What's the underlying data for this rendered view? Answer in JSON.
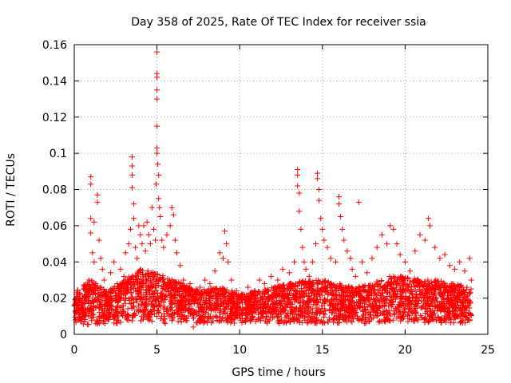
{
  "chart_data": {
    "type": "scatter",
    "title": "Day 358 of 2025, Rate Of TEC Index for receiver ssia",
    "xlabel": "GPS time / hours",
    "ylabel": "ROTI / TECUs",
    "xlim": [
      0,
      25
    ],
    "ylim": [
      0,
      0.16
    ],
    "x_ticks": [
      0,
      5,
      10,
      15,
      20,
      25
    ],
    "x_tick_labels": [
      "0",
      "5",
      "10",
      "15",
      "20",
      "25"
    ],
    "y_ticks": [
      0,
      0.02,
      0.04,
      0.06,
      0.08,
      0.1,
      0.12,
      0.14,
      0.16
    ],
    "y_tick_labels": [
      "0",
      "0.02",
      "0.04",
      "0.06",
      "0.08",
      "0.1",
      "0.12",
      "0.14",
      "0.16"
    ],
    "grid": true,
    "marker": "+",
    "marker_color": "#ff0000",
    "series": [
      {
        "name": "ROTI",
        "points": [
          [
            0.1,
            0.018
          ],
          [
            0.3,
            0.022
          ],
          [
            0.5,
            0.012
          ],
          [
            0.7,
            0.026
          ],
          [
            0.9,
            0.03
          ],
          [
            1.0,
            0.087
          ],
          [
            1.0,
            0.083
          ],
          [
            1.0,
            0.064
          ],
          [
            1.0,
            0.056
          ],
          [
            1.1,
            0.045
          ],
          [
            1.2,
            0.062
          ],
          [
            1.2,
            0.04
          ],
          [
            1.3,
            0.028
          ],
          [
            1.4,
            0.077
          ],
          [
            1.4,
            0.073
          ],
          [
            1.5,
            0.052
          ],
          [
            1.6,
            0.042
          ],
          [
            1.7,
            0.036
          ],
          [
            1.8,
            0.03
          ],
          [
            2.0,
            0.02
          ],
          [
            2.2,
            0.034
          ],
          [
            2.4,
            0.04
          ],
          [
            2.6,
            0.028
          ],
          [
            2.8,
            0.036
          ],
          [
            3.0,
            0.032
          ],
          [
            3.1,
            0.045
          ],
          [
            3.3,
            0.05
          ],
          [
            3.4,
            0.058
          ],
          [
            3.5,
            0.098
          ],
          [
            3.5,
            0.093
          ],
          [
            3.5,
            0.088
          ],
          [
            3.5,
            0.081
          ],
          [
            3.6,
            0.072
          ],
          [
            3.6,
            0.064
          ],
          [
            3.7,
            0.048
          ],
          [
            3.8,
            0.042
          ],
          [
            3.9,
            0.06
          ],
          [
            4.0,
            0.055
          ],
          [
            4.1,
            0.05
          ],
          [
            4.2,
            0.06
          ],
          [
            4.3,
            0.046
          ],
          [
            4.4,
            0.062
          ],
          [
            4.5,
            0.055
          ],
          [
            4.6,
            0.05
          ],
          [
            4.7,
            0.07
          ],
          [
            4.8,
            0.058
          ],
          [
            4.9,
            0.052
          ],
          [
            4.95,
            0.083
          ],
          [
            5.0,
            0.156
          ],
          [
            5.0,
            0.144
          ],
          [
            5.0,
            0.142
          ],
          [
            5.0,
            0.135
          ],
          [
            5.0,
            0.13
          ],
          [
            5.0,
            0.115
          ],
          [
            5.0,
            0.103
          ],
          [
            5.0,
            0.1
          ],
          [
            5.05,
            0.094
          ],
          [
            5.1,
            0.088
          ],
          [
            5.1,
            0.075
          ],
          [
            5.15,
            0.07
          ],
          [
            5.2,
            0.065
          ],
          [
            5.3,
            0.052
          ],
          [
            5.4,
            0.048
          ],
          [
            5.6,
            0.055
          ],
          [
            5.8,
            0.06
          ],
          [
            5.9,
            0.07
          ],
          [
            6.0,
            0.066
          ],
          [
            6.1,
            0.052
          ],
          [
            6.2,
            0.045
          ],
          [
            6.4,
            0.038
          ],
          [
            6.6,
            0.03
          ],
          [
            6.8,
            0.025
          ],
          [
            7.0,
            0.028
          ],
          [
            7.3,
            0.022
          ],
          [
            7.6,
            0.026
          ],
          [
            7.9,
            0.03
          ],
          [
            8.2,
            0.028
          ],
          [
            8.5,
            0.035
          ],
          [
            8.8,
            0.045
          ],
          [
            9.0,
            0.042
          ],
          [
            9.1,
            0.057
          ],
          [
            9.2,
            0.05
          ],
          [
            9.3,
            0.04
          ],
          [
            9.5,
            0.03
          ],
          [
            9.8,
            0.024
          ],
          [
            10.1,
            0.022
          ],
          [
            10.5,
            0.026
          ],
          [
            10.9,
            0.024
          ],
          [
            11.2,
            0.03
          ],
          [
            11.5,
            0.028
          ],
          [
            11.9,
            0.032
          ],
          [
            12.3,
            0.03
          ],
          [
            12.6,
            0.036
          ],
          [
            13.0,
            0.034
          ],
          [
            13.3,
            0.04
          ],
          [
            13.5,
            0.091
          ],
          [
            13.5,
            0.088
          ],
          [
            13.5,
            0.082
          ],
          [
            13.6,
            0.078
          ],
          [
            13.6,
            0.068
          ],
          [
            13.7,
            0.058
          ],
          [
            13.8,
            0.048
          ],
          [
            13.9,
            0.04
          ],
          [
            14.0,
            0.036
          ],
          [
            14.2,
            0.032
          ],
          [
            14.4,
            0.04
          ],
          [
            14.6,
            0.05
          ],
          [
            14.7,
            0.089
          ],
          [
            14.7,
            0.086
          ],
          [
            14.8,
            0.08
          ],
          [
            14.8,
            0.074
          ],
          [
            14.9,
            0.064
          ],
          [
            15.0,
            0.058
          ],
          [
            15.1,
            0.052
          ],
          [
            15.3,
            0.048
          ],
          [
            15.5,
            0.042
          ],
          [
            15.8,
            0.04
          ],
          [
            16.0,
            0.076
          ],
          [
            16.0,
            0.072
          ],
          [
            16.1,
            0.065
          ],
          [
            16.2,
            0.058
          ],
          [
            16.3,
            0.052
          ],
          [
            16.5,
            0.046
          ],
          [
            16.7,
            0.042
          ],
          [
            16.8,
            0.036
          ],
          [
            17.0,
            0.032
          ],
          [
            17.2,
            0.073
          ],
          [
            17.4,
            0.04
          ],
          [
            17.7,
            0.034
          ],
          [
            18.0,
            0.042
          ],
          [
            18.3,
            0.048
          ],
          [
            18.6,
            0.055
          ],
          [
            18.9,
            0.05
          ],
          [
            19.1,
            0.06
          ],
          [
            19.3,
            0.058
          ],
          [
            19.5,
            0.05
          ],
          [
            19.7,
            0.044
          ],
          [
            20.0,
            0.04
          ],
          [
            20.3,
            0.035
          ],
          [
            20.6,
            0.046
          ],
          [
            20.9,
            0.055
          ],
          [
            21.2,
            0.052
          ],
          [
            21.4,
            0.064
          ],
          [
            21.5,
            0.06
          ],
          [
            21.8,
            0.048
          ],
          [
            22.1,
            0.042
          ],
          [
            22.4,
            0.044
          ],
          [
            22.7,
            0.038
          ],
          [
            23.0,
            0.036
          ],
          [
            23.3,
            0.04
          ],
          [
            23.6,
            0.035
          ],
          [
            23.9,
            0.042
          ],
          [
            24.0,
            0.03
          ],
          [
            0.2,
            0.008
          ],
          [
            0.6,
            0.01
          ],
          [
            1.3,
            0.006
          ],
          [
            2.1,
            0.012
          ],
          [
            3.2,
            0.008
          ],
          [
            4.5,
            0.01
          ],
          [
            5.5,
            0.006
          ],
          [
            6.5,
            0.012
          ],
          [
            7.2,
            0.004
          ],
          [
            8.1,
            0.01
          ],
          [
            9.3,
            0.008
          ],
          [
            10.4,
            0.012
          ],
          [
            11.6,
            0.01
          ],
          [
            12.4,
            0.006
          ],
          [
            13.2,
            0.011
          ],
          [
            14.3,
            0.008
          ],
          [
            15.6,
            0.012
          ],
          [
            16.6,
            0.009
          ],
          [
            17.9,
            0.011
          ],
          [
            18.8,
            0.007
          ],
          [
            19.9,
            0.01
          ],
          [
            20.8,
            0.008
          ],
          [
            21.7,
            0.011
          ],
          [
            22.6,
            0.009
          ],
          [
            23.5,
            0.01
          ]
        ]
      }
    ],
    "baseline_band": {
      "description": "dense cloud of points between these ROTI values at each hour",
      "hours": [
        0,
        1,
        2,
        3,
        4,
        5,
        6,
        7,
        8,
        9,
        10,
        11,
        12,
        13,
        14,
        15,
        16,
        17,
        18,
        19,
        20,
        21,
        22,
        23,
        24
      ],
      "low": [
        0.006,
        0.005,
        0.006,
        0.006,
        0.007,
        0.006,
        0.007,
        0.006,
        0.006,
        0.006,
        0.006,
        0.006,
        0.006,
        0.006,
        0.006,
        0.006,
        0.006,
        0.006,
        0.006,
        0.006,
        0.006,
        0.006,
        0.006,
        0.006,
        0.006
      ],
      "high": [
        0.024,
        0.03,
        0.024,
        0.03,
        0.036,
        0.034,
        0.03,
        0.026,
        0.025,
        0.026,
        0.022,
        0.024,
        0.026,
        0.028,
        0.03,
        0.03,
        0.028,
        0.026,
        0.028,
        0.032,
        0.032,
        0.03,
        0.03,
        0.028,
        0.026
      ]
    }
  }
}
